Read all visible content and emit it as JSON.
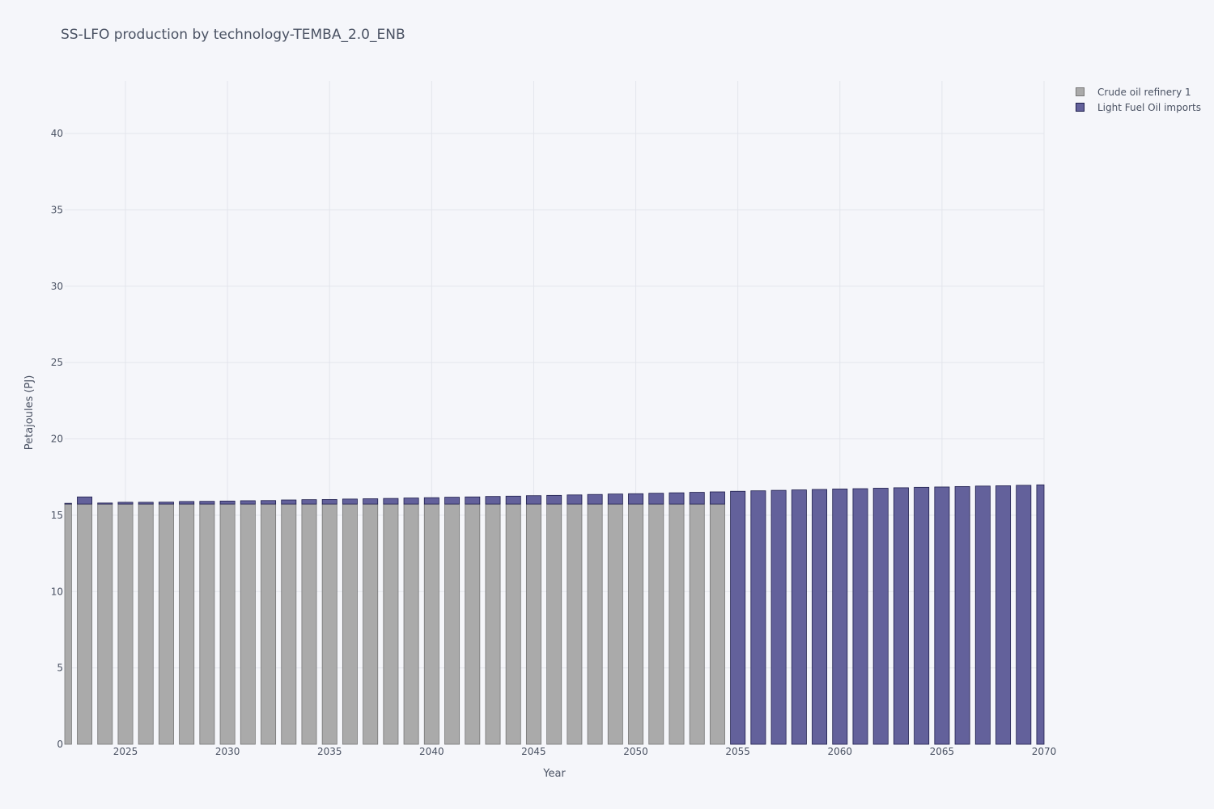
{
  "chart_data": {
    "type": "bar",
    "stacked": true,
    "title": "SS-LFO production by technology-TEMBA_2.0_ENB",
    "xlabel": "Year",
    "ylabel": "Petajoules (PJ)",
    "ylim": [
      0,
      43.5
    ],
    "xlim": [
      2022,
      2070
    ],
    "yticks": [
      0,
      5,
      10,
      15,
      20,
      25,
      30,
      35,
      40
    ],
    "xticks": [
      2025,
      2030,
      2035,
      2040,
      2045,
      2050,
      2055,
      2060,
      2065,
      2070
    ],
    "grid": true,
    "legend_position": "top-right",
    "x": [
      2022,
      2023,
      2024,
      2025,
      2026,
      2027,
      2028,
      2029,
      2030,
      2031,
      2032,
      2033,
      2034,
      2035,
      2036,
      2037,
      2038,
      2039,
      2040,
      2041,
      2042,
      2043,
      2044,
      2045,
      2046,
      2047,
      2048,
      2049,
      2050,
      2051,
      2052,
      2053,
      2054,
      2055,
      2056,
      2057,
      2058,
      2059,
      2060,
      2061,
      2062,
      2063,
      2064,
      2065,
      2066,
      2067,
      2068,
      2069,
      2070
    ],
    "series": [
      {
        "name": "Crude oil refinery 1",
        "color": "#aaaaaa",
        "edge": "#777777",
        "values": [
          15.73,
          15.73,
          15.73,
          15.73,
          15.73,
          15.73,
          15.73,
          15.73,
          15.73,
          15.73,
          15.73,
          15.73,
          15.73,
          15.73,
          15.73,
          15.73,
          15.73,
          15.73,
          15.73,
          15.73,
          15.73,
          15.73,
          15.73,
          15.73,
          15.73,
          15.73,
          15.73,
          15.73,
          15.73,
          15.73,
          15.73,
          15.73,
          15.73,
          0,
          0,
          0,
          0,
          0,
          0,
          0,
          0,
          0,
          0,
          0,
          0,
          0,
          0,
          0,
          0
        ]
      },
      {
        "name": "Light Fuel Oil imports",
        "color": "#63619b",
        "edge": "#1f1f4d",
        "values": [
          0.05,
          0.47,
          0.07,
          0.12,
          0.12,
          0.13,
          0.17,
          0.18,
          0.2,
          0.22,
          0.23,
          0.27,
          0.29,
          0.3,
          0.33,
          0.35,
          0.37,
          0.4,
          0.42,
          0.45,
          0.47,
          0.5,
          0.52,
          0.55,
          0.57,
          0.6,
          0.63,
          0.66,
          0.68,
          0.71,
          0.74,
          0.77,
          0.8,
          16.57,
          16.6,
          16.63,
          16.66,
          16.69,
          16.72,
          16.74,
          16.77,
          16.8,
          16.83,
          16.85,
          16.88,
          16.91,
          16.93,
          16.96,
          16.99
        ]
      }
    ]
  }
}
